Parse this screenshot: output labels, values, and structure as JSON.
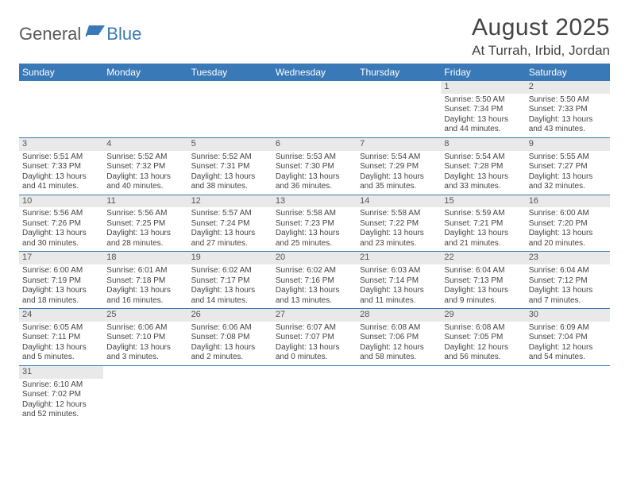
{
  "logo": {
    "text1": "General",
    "text2": "Blue"
  },
  "title": "August 2025",
  "location": "At Turrah, Irbid, Jordan",
  "colors": {
    "header_bg": "#3a79b7",
    "header_text": "#ffffff",
    "daynum_bg": "#e9e9e9",
    "rule": "#3a79b7",
    "text": "#444444",
    "logo_gray": "#58595b",
    "logo_blue": "#3a79b7"
  },
  "day_headers": [
    "Sunday",
    "Monday",
    "Tuesday",
    "Wednesday",
    "Thursday",
    "Friday",
    "Saturday"
  ],
  "weeks": [
    [
      null,
      null,
      null,
      null,
      null,
      {
        "n": "1",
        "sr": "5:50 AM",
        "ss": "7:34 PM",
        "dh": "13",
        "dm": "44"
      },
      {
        "n": "2",
        "sr": "5:50 AM",
        "ss": "7:33 PM",
        "dh": "13",
        "dm": "43"
      }
    ],
    [
      {
        "n": "3",
        "sr": "5:51 AM",
        "ss": "7:33 PM",
        "dh": "13",
        "dm": "41"
      },
      {
        "n": "4",
        "sr": "5:52 AM",
        "ss": "7:32 PM",
        "dh": "13",
        "dm": "40"
      },
      {
        "n": "5",
        "sr": "5:52 AM",
        "ss": "7:31 PM",
        "dh": "13",
        "dm": "38"
      },
      {
        "n": "6",
        "sr": "5:53 AM",
        "ss": "7:30 PM",
        "dh": "13",
        "dm": "36"
      },
      {
        "n": "7",
        "sr": "5:54 AM",
        "ss": "7:29 PM",
        "dh": "13",
        "dm": "35"
      },
      {
        "n": "8",
        "sr": "5:54 AM",
        "ss": "7:28 PM",
        "dh": "13",
        "dm": "33"
      },
      {
        "n": "9",
        "sr": "5:55 AM",
        "ss": "7:27 PM",
        "dh": "13",
        "dm": "32"
      }
    ],
    [
      {
        "n": "10",
        "sr": "5:56 AM",
        "ss": "7:26 PM",
        "dh": "13",
        "dm": "30"
      },
      {
        "n": "11",
        "sr": "5:56 AM",
        "ss": "7:25 PM",
        "dh": "13",
        "dm": "28"
      },
      {
        "n": "12",
        "sr": "5:57 AM",
        "ss": "7:24 PM",
        "dh": "13",
        "dm": "27"
      },
      {
        "n": "13",
        "sr": "5:58 AM",
        "ss": "7:23 PM",
        "dh": "13",
        "dm": "25"
      },
      {
        "n": "14",
        "sr": "5:58 AM",
        "ss": "7:22 PM",
        "dh": "13",
        "dm": "23"
      },
      {
        "n": "15",
        "sr": "5:59 AM",
        "ss": "7:21 PM",
        "dh": "13",
        "dm": "21"
      },
      {
        "n": "16",
        "sr": "6:00 AM",
        "ss": "7:20 PM",
        "dh": "13",
        "dm": "20"
      }
    ],
    [
      {
        "n": "17",
        "sr": "6:00 AM",
        "ss": "7:19 PM",
        "dh": "13",
        "dm": "18"
      },
      {
        "n": "18",
        "sr": "6:01 AM",
        "ss": "7:18 PM",
        "dh": "13",
        "dm": "16"
      },
      {
        "n": "19",
        "sr": "6:02 AM",
        "ss": "7:17 PM",
        "dh": "13",
        "dm": "14"
      },
      {
        "n": "20",
        "sr": "6:02 AM",
        "ss": "7:16 PM",
        "dh": "13",
        "dm": "13"
      },
      {
        "n": "21",
        "sr": "6:03 AM",
        "ss": "7:14 PM",
        "dh": "13",
        "dm": "11"
      },
      {
        "n": "22",
        "sr": "6:04 AM",
        "ss": "7:13 PM",
        "dh": "13",
        "dm": "9"
      },
      {
        "n": "23",
        "sr": "6:04 AM",
        "ss": "7:12 PM",
        "dh": "13",
        "dm": "7"
      }
    ],
    [
      {
        "n": "24",
        "sr": "6:05 AM",
        "ss": "7:11 PM",
        "dh": "13",
        "dm": "5"
      },
      {
        "n": "25",
        "sr": "6:06 AM",
        "ss": "7:10 PM",
        "dh": "13",
        "dm": "3"
      },
      {
        "n": "26",
        "sr": "6:06 AM",
        "ss": "7:08 PM",
        "dh": "13",
        "dm": "2"
      },
      {
        "n": "27",
        "sr": "6:07 AM",
        "ss": "7:07 PM",
        "dh": "13",
        "dm": "0"
      },
      {
        "n": "28",
        "sr": "6:08 AM",
        "ss": "7:06 PM",
        "dh": "12",
        "dm": "58"
      },
      {
        "n": "29",
        "sr": "6:08 AM",
        "ss": "7:05 PM",
        "dh": "12",
        "dm": "56"
      },
      {
        "n": "30",
        "sr": "6:09 AM",
        "ss": "7:04 PM",
        "dh": "12",
        "dm": "54"
      }
    ],
    [
      {
        "n": "31",
        "sr": "6:10 AM",
        "ss": "7:02 PM",
        "dh": "12",
        "dm": "52"
      },
      null,
      null,
      null,
      null,
      null,
      null
    ]
  ],
  "labels": {
    "sunrise": "Sunrise:",
    "sunset": "Sunset:",
    "daylight": "Daylight:",
    "hours": "hours",
    "and": "and",
    "minutes": "minutes."
  }
}
